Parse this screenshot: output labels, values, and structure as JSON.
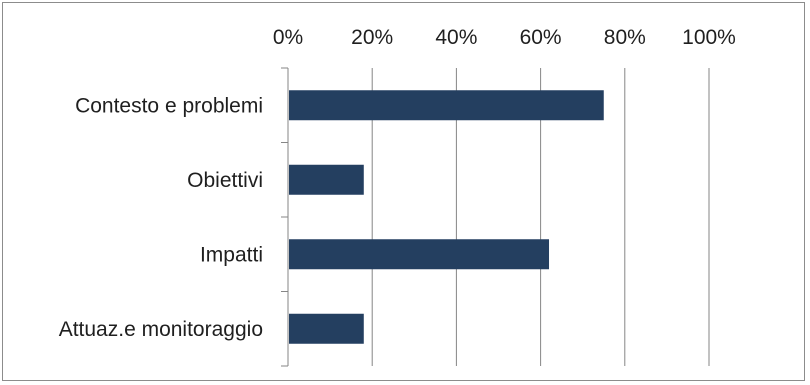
{
  "chart_data": {
    "type": "bar",
    "orientation": "horizontal",
    "categories": [
      "Contesto e problemi",
      "Obiettivi",
      "Impatti",
      "Attuaz.e monitoraggio"
    ],
    "values": [
      0.75,
      0.18,
      0.62,
      0.18
    ],
    "xlim": [
      0,
      1
    ],
    "xticks": [
      0,
      0.2,
      0.4,
      0.6,
      0.8,
      1.0
    ],
    "xtick_labels": [
      "0%",
      "20%",
      "40%",
      "60%",
      "80%",
      "100%"
    ],
    "x_axis_position": "top",
    "grid": "vertical major gridlines",
    "legend": "none",
    "bar_color": "#243F60",
    "gridline_color": "#868686"
  }
}
